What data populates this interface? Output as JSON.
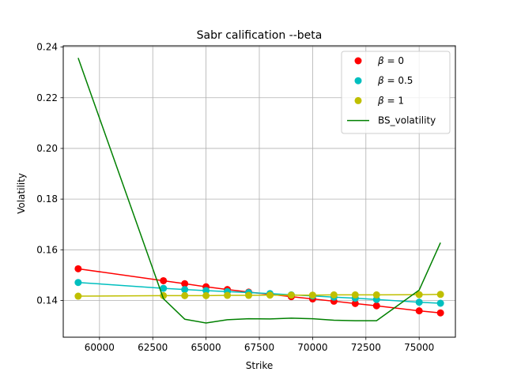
{
  "chart_data": {
    "type": "line",
    "title": "Sabr calification --beta",
    "xlabel": "Strike",
    "ylabel": "Volatility",
    "xlim": [
      58300,
      76700
    ],
    "ylim": [
      0.1255,
      0.2405
    ],
    "xticks": [
      60000,
      62500,
      65000,
      67500,
      70000,
      72500,
      75000
    ],
    "xtick_labels": [
      "60000",
      "62500",
      "65000",
      "67500",
      "70000",
      "72500",
      "75000"
    ],
    "yticks": [
      0.14,
      0.16,
      0.18,
      0.2,
      0.22,
      0.24
    ],
    "ytick_labels": [
      "0.14",
      "0.16",
      "0.18",
      "0.20",
      "0.22",
      "0.24"
    ],
    "grid": true,
    "legend_position": "top-right",
    "x": [
      59000,
      63000,
      64000,
      65000,
      66000,
      67000,
      68000,
      69000,
      70000,
      71000,
      72000,
      73000,
      75000,
      76000
    ],
    "series": [
      {
        "name": "β = 0",
        "legend_prefix": "β",
        "legend_suffix": " = 0",
        "color": "#ff0000",
        "marker": "circle",
        "line": true,
        "values": [
          0.1525,
          0.1478,
          0.1466,
          0.1454,
          0.1443,
          0.1433,
          0.1424,
          0.1415,
          0.1406,
          0.1397,
          0.1388,
          0.1379,
          0.1359,
          0.1351
        ]
      },
      {
        "name": "β = 0.5",
        "legend_prefix": "β",
        "legend_suffix": " = 0.5",
        "color": "#00bfbf",
        "marker": "circle",
        "line": true,
        "values": [
          0.1471,
          0.1448,
          0.1443,
          0.1439,
          0.1435,
          0.1431,
          0.1427,
          0.1422,
          0.1418,
          0.1413,
          0.1409,
          0.1404,
          0.1393,
          0.1389
        ]
      },
      {
        "name": "β = 1",
        "legend_prefix": "β",
        "legend_suffix": " = 1",
        "color": "#bfbf00",
        "marker": "circle",
        "line": true,
        "values": [
          0.1417,
          0.1419,
          0.1419,
          0.1419,
          0.142,
          0.142,
          0.1421,
          0.1421,
          0.1421,
          0.1422,
          0.1422,
          0.1422,
          0.1423,
          0.1424
        ]
      },
      {
        "name": "BS_volatility",
        "legend_prefix": "",
        "legend_suffix": "BS_volatility",
        "color": "#008000",
        "marker": "none",
        "line": true,
        "values": [
          0.2357,
          0.1407,
          0.1326,
          0.1311,
          0.1324,
          0.1328,
          0.1327,
          0.133,
          0.1328,
          0.1322,
          0.132,
          0.132,
          0.1441,
          0.1628
        ]
      }
    ]
  }
}
